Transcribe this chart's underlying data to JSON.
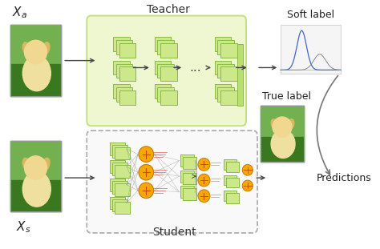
{
  "title": "Teacher",
  "student_label": "Student",
  "soft_label": "Soft label",
  "true_label": "True label",
  "predictions": "Predictions",
  "x_a": "$X_a$",
  "x_s": "$X_s$",
  "bg_color": "#ffffff",
  "teacher_box_color": "#eef7d0",
  "teacher_box_edge": "#c5df82",
  "student_box_color": "#f9f9f9",
  "student_box_edge": "#aaaaaa",
  "conv_fill": "#cce88a",
  "conv_edge": "#8abb44",
  "conv_fill2": "#b8df70",
  "arrow_color": "#555555",
  "title_fontsize": 10,
  "label_fontsize": 9,
  "figw": 4.74,
  "figh": 3.11,
  "dpi": 100
}
